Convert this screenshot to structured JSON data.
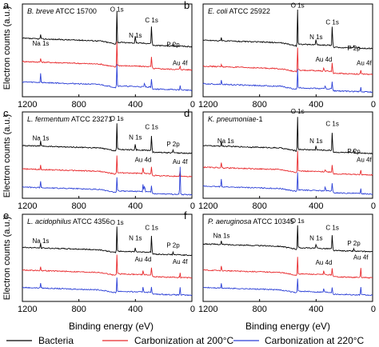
{
  "figure": {
    "ylabel": "Electron counts (a.u.)",
    "xlabel": "Binding energy (eV)",
    "legend": [
      {
        "label": "Bacteria",
        "color": "#000000"
      },
      {
        "label": "Carbonization at 200°C",
        "color": "#e8282b"
      },
      {
        "label": "Carbonization at 220°C",
        "color": "#2b3fd6"
      }
    ]
  },
  "chart_data": [
    {
      "type": "line",
      "panel": "a",
      "title_italic": "B. breve",
      "title_rest": " ATCC 15700",
      "xlim": [
        1200,
        0
      ],
      "xticks": [
        "1200",
        "800",
        "400",
        "0"
      ],
      "xtick_values": [
        1200,
        800,
        400,
        0
      ],
      "annotations": [
        {
          "text": "Na 1s",
          "x": 1070,
          "level": 0.55
        },
        {
          "text": "O 1s",
          "x": 531,
          "level": 0.92
        },
        {
          "text": "C 1s",
          "x": 285,
          "level": 0.8
        },
        {
          "text": "N 1s",
          "x": 400,
          "level": 0.64
        },
        {
          "text": "P 2p",
          "x": 133,
          "level": 0.54
        },
        {
          "text": "Au 4f",
          "x": 84,
          "level": 0.34
        }
      ],
      "series": [
        {
          "name": "Bacteria",
          "color": "#000000",
          "offset": 0.57,
          "peaks": [
            [
              1071,
              0.05
            ],
            [
              531,
              0.34
            ],
            [
              400,
              0.1
            ],
            [
              285,
              0.22
            ],
            [
              133,
              0.03
            ]
          ]
        },
        {
          "name": "Carbonization at 200°C",
          "color": "#e8282b",
          "offset": 0.32,
          "peaks": [
            [
              1071,
              0.04
            ],
            [
              531,
              0.26
            ],
            [
              285,
              0.12
            ],
            [
              84,
              0.04
            ]
          ]
        },
        {
          "name": "Carbonization at 220°C",
          "color": "#2b3fd6",
          "offset": 0.1,
          "peaks": [
            [
              1071,
              0.1
            ],
            [
              531,
              0.24
            ],
            [
              335,
              0.05
            ],
            [
              285,
              0.1
            ],
            [
              84,
              0.05
            ]
          ]
        }
      ]
    },
    {
      "type": "line",
      "panel": "b",
      "title_italic": "E. coli",
      "title_rest": " ATCC 25922",
      "xlim": [
        1200,
        0
      ],
      "xticks": [
        "1200",
        "800",
        "400",
        "0"
      ],
      "xtick_values": [
        1200,
        800,
        400,
        0
      ],
      "annotations": [
        {
          "text": "O 1s",
          "x": 531,
          "level": 0.96
        },
        {
          "text": "C 1s",
          "x": 285,
          "level": 0.78
        },
        {
          "text": "N 1s",
          "x": 400,
          "level": 0.62
        },
        {
          "text": "P 2p",
          "x": 133,
          "level": 0.5
        },
        {
          "text": "Au 4d",
          "x": 345,
          "level": 0.38
        },
        {
          "text": "Au 4f",
          "x": 60,
          "level": 0.34
        }
      ],
      "series": [
        {
          "name": "Bacteria",
          "color": "#000000",
          "offset": 0.55,
          "peaks": [
            [
              1071,
              0.03
            ],
            [
              531,
              0.38
            ],
            [
              400,
              0.08
            ],
            [
              285,
              0.24
            ],
            [
              133,
              0.03
            ]
          ]
        },
        {
          "name": "Carbonization at 200°C",
          "color": "#e8282b",
          "offset": 0.27,
          "peaks": [
            [
              1071,
              0.03
            ],
            [
              531,
              0.24
            ],
            [
              345,
              0.04
            ],
            [
              285,
              0.1
            ],
            [
              84,
              0.04
            ]
          ]
        },
        {
          "name": "Carbonization at 220°C",
          "color": "#2b3fd6",
          "offset": 0.08,
          "peaks": [
            [
              1071,
              0.05
            ],
            [
              531,
              0.2
            ],
            [
              335,
              0.05
            ],
            [
              285,
              0.09
            ],
            [
              84,
              0.05
            ]
          ]
        }
      ]
    },
    {
      "type": "line",
      "panel": "c",
      "title_italic": "L. fermentum",
      "title_rest": " ATCC 23271",
      "xlim": [
        1200,
        0
      ],
      "xticks": [
        "1200",
        "800",
        "400",
        "0"
      ],
      "xtick_values": [
        1200,
        800,
        400,
        0
      ],
      "annotations": [
        {
          "text": "Na 1s",
          "x": 1070,
          "level": 0.67
        },
        {
          "text": "O 1s",
          "x": 531,
          "level": 0.9
        },
        {
          "text": "C 1s",
          "x": 285,
          "level": 0.8
        },
        {
          "text": "N 1s",
          "x": 400,
          "level": 0.68
        },
        {
          "text": "P 2p",
          "x": 133,
          "level": 0.6
        },
        {
          "text": "Au 4d",
          "x": 345,
          "level": 0.42
        },
        {
          "text": "Au 4f",
          "x": 84,
          "level": 0.4
        }
      ],
      "series": [
        {
          "name": "Bacteria",
          "color": "#000000",
          "offset": 0.55,
          "peaks": [
            [
              1071,
              0.06
            ],
            [
              531,
              0.3
            ],
            [
              400,
              0.08
            ],
            [
              285,
              0.2
            ],
            [
              133,
              0.03
            ]
          ]
        },
        {
          "name": "Carbonization at 200°C",
          "color": "#e8282b",
          "offset": 0.28,
          "peaks": [
            [
              1071,
              0.05
            ],
            [
              531,
              0.2
            ],
            [
              345,
              0.08
            ],
            [
              285,
              0.1
            ],
            [
              84,
              0.07
            ]
          ]
        },
        {
          "name": "Carbonization at 220°C",
          "color": "#2b3fd6",
          "offset": 0.07,
          "peaks": [
            [
              1071,
              0.07
            ],
            [
              531,
              0.16
            ],
            [
              345,
              0.1
            ],
            [
              335,
              0.09
            ],
            [
              285,
              0.08
            ],
            [
              84,
              0.35
            ]
          ]
        }
      ]
    },
    {
      "type": "line",
      "panel": "d",
      "title_italic": "K. pneumoniae",
      "title_rest": "-1",
      "xlim": [
        1200,
        0
      ],
      "xticks": [
        "1200",
        "800",
        "400",
        "0"
      ],
      "xtick_values": [
        1200,
        800,
        400,
        0
      ],
      "annotations": [
        {
          "text": "Na 1s",
          "x": 1040,
          "level": 0.64
        },
        {
          "text": "O 1s",
          "x": 531,
          "level": 0.98
        },
        {
          "text": "C 1s",
          "x": 285,
          "level": 0.84
        },
        {
          "text": "N 1s",
          "x": 400,
          "level": 0.64
        },
        {
          "text": "P 2p",
          "x": 133,
          "level": 0.52
        },
        {
          "text": "Au 4f",
          "x": 60,
          "level": 0.42
        }
      ],
      "series": [
        {
          "name": "Bacteria",
          "color": "#000000",
          "offset": 0.55,
          "peaks": [
            [
              1071,
              0.06
            ],
            [
              531,
              0.38
            ],
            [
              400,
              0.06
            ],
            [
              285,
              0.24
            ],
            [
              133,
              0.03
            ]
          ]
        },
        {
          "name": "Carbonization at 200°C",
          "color": "#e8282b",
          "offset": 0.3,
          "peaks": [
            [
              1071,
              0.06
            ],
            [
              531,
              0.24
            ],
            [
              335,
              0.04
            ],
            [
              285,
              0.1
            ],
            [
              84,
              0.06
            ]
          ]
        },
        {
          "name": "Carbonization at 220°C",
          "color": "#2b3fd6",
          "offset": 0.08,
          "peaks": [
            [
              1071,
              0.09
            ],
            [
              531,
              0.2
            ],
            [
              335,
              0.06
            ],
            [
              285,
              0.1
            ],
            [
              84,
              0.07
            ]
          ]
        }
      ]
    },
    {
      "type": "line",
      "panel": "e",
      "title_italic": "L. acidophilus",
      "title_rest": " ATCC 4356",
      "xlim": [
        1200,
        0
      ],
      "xticks": [
        "1200",
        "800",
        "400",
        "0"
      ],
      "xtick_values": [
        1200,
        800,
        400,
        0
      ],
      "annotations": [
        {
          "text": "Na 1s",
          "x": 1070,
          "level": 0.67
        },
        {
          "text": "O 1s",
          "x": 531,
          "level": 0.88
        },
        {
          "text": "C 1s",
          "x": 285,
          "level": 0.82
        },
        {
          "text": "N 1s",
          "x": 400,
          "level": 0.7
        },
        {
          "text": "P 2p",
          "x": 133,
          "level": 0.62
        },
        {
          "text": "Au 4d",
          "x": 345,
          "level": 0.46
        },
        {
          "text": "Au 4f",
          "x": 84,
          "level": 0.43
        }
      ],
      "series": [
        {
          "name": "Bacteria",
          "color": "#000000",
          "offset": 0.56,
          "peaks": [
            [
              1071,
              0.05
            ],
            [
              531,
              0.28
            ],
            [
              400,
              0.06
            ],
            [
              285,
              0.22
            ],
            [
              133,
              0.03
            ]
          ]
        },
        {
          "name": "Carbonization at 200°C",
          "color": "#e8282b",
          "offset": 0.3,
          "peaks": [
            [
              1071,
              0.05
            ],
            [
              531,
              0.22
            ],
            [
              345,
              0.06
            ],
            [
              285,
              0.1
            ],
            [
              84,
              0.06
            ]
          ]
        },
        {
          "name": "Carbonization at 220°C",
          "color": "#2b3fd6",
          "offset": 0.1,
          "peaks": [
            [
              1071,
              0.06
            ],
            [
              531,
              0.16
            ],
            [
              345,
              0.07
            ],
            [
              285,
              0.08
            ],
            [
              84,
              0.1
            ]
          ]
        }
      ]
    },
    {
      "type": "line",
      "panel": "f",
      "title_italic": "P. aeruginosa",
      "title_rest": " ATCC 10345",
      "xlim": [
        1200,
        0
      ],
      "xticks": [
        "1200",
        "800",
        "400",
        "0"
      ],
      "xtick_values": [
        1200,
        800,
        400,
        0
      ],
      "annotations": [
        {
          "text": "Na 1s",
          "x": 1070,
          "level": 0.73
        },
        {
          "text": "O 1s",
          "x": 531,
          "level": 0.9
        },
        {
          "text": "C 1s",
          "x": 285,
          "level": 0.82
        },
        {
          "text": "N 1s",
          "x": 400,
          "level": 0.7
        },
        {
          "text": "P 2p",
          "x": 133,
          "level": 0.64
        },
        {
          "text": "Au 4d",
          "x": 345,
          "level": 0.42
        },
        {
          "text": "Au 4f",
          "x": 84,
          "level": 0.48
        }
      ],
      "series": [
        {
          "name": "Bacteria",
          "color": "#000000",
          "offset": 0.6,
          "peaks": [
            [
              1071,
              0.04
            ],
            [
              531,
              0.26
            ],
            [
              400,
              0.06
            ],
            [
              285,
              0.18
            ],
            [
              133,
              0.03
            ]
          ]
        },
        {
          "name": "Carbonization at 200°C",
          "color": "#e8282b",
          "offset": 0.3,
          "peaks": [
            [
              1071,
              0.05
            ],
            [
              531,
              0.2
            ],
            [
              345,
              0.06
            ],
            [
              285,
              0.09
            ],
            [
              84,
              0.12
            ]
          ]
        },
        {
          "name": "Carbonization at 220°C",
          "color": "#2b3fd6",
          "offset": 0.1,
          "peaks": [
            [
              1071,
              0.05
            ],
            [
              531,
              0.14
            ],
            [
              345,
              0.05
            ],
            [
              285,
              0.07
            ],
            [
              84,
              0.1
            ]
          ]
        }
      ]
    }
  ]
}
